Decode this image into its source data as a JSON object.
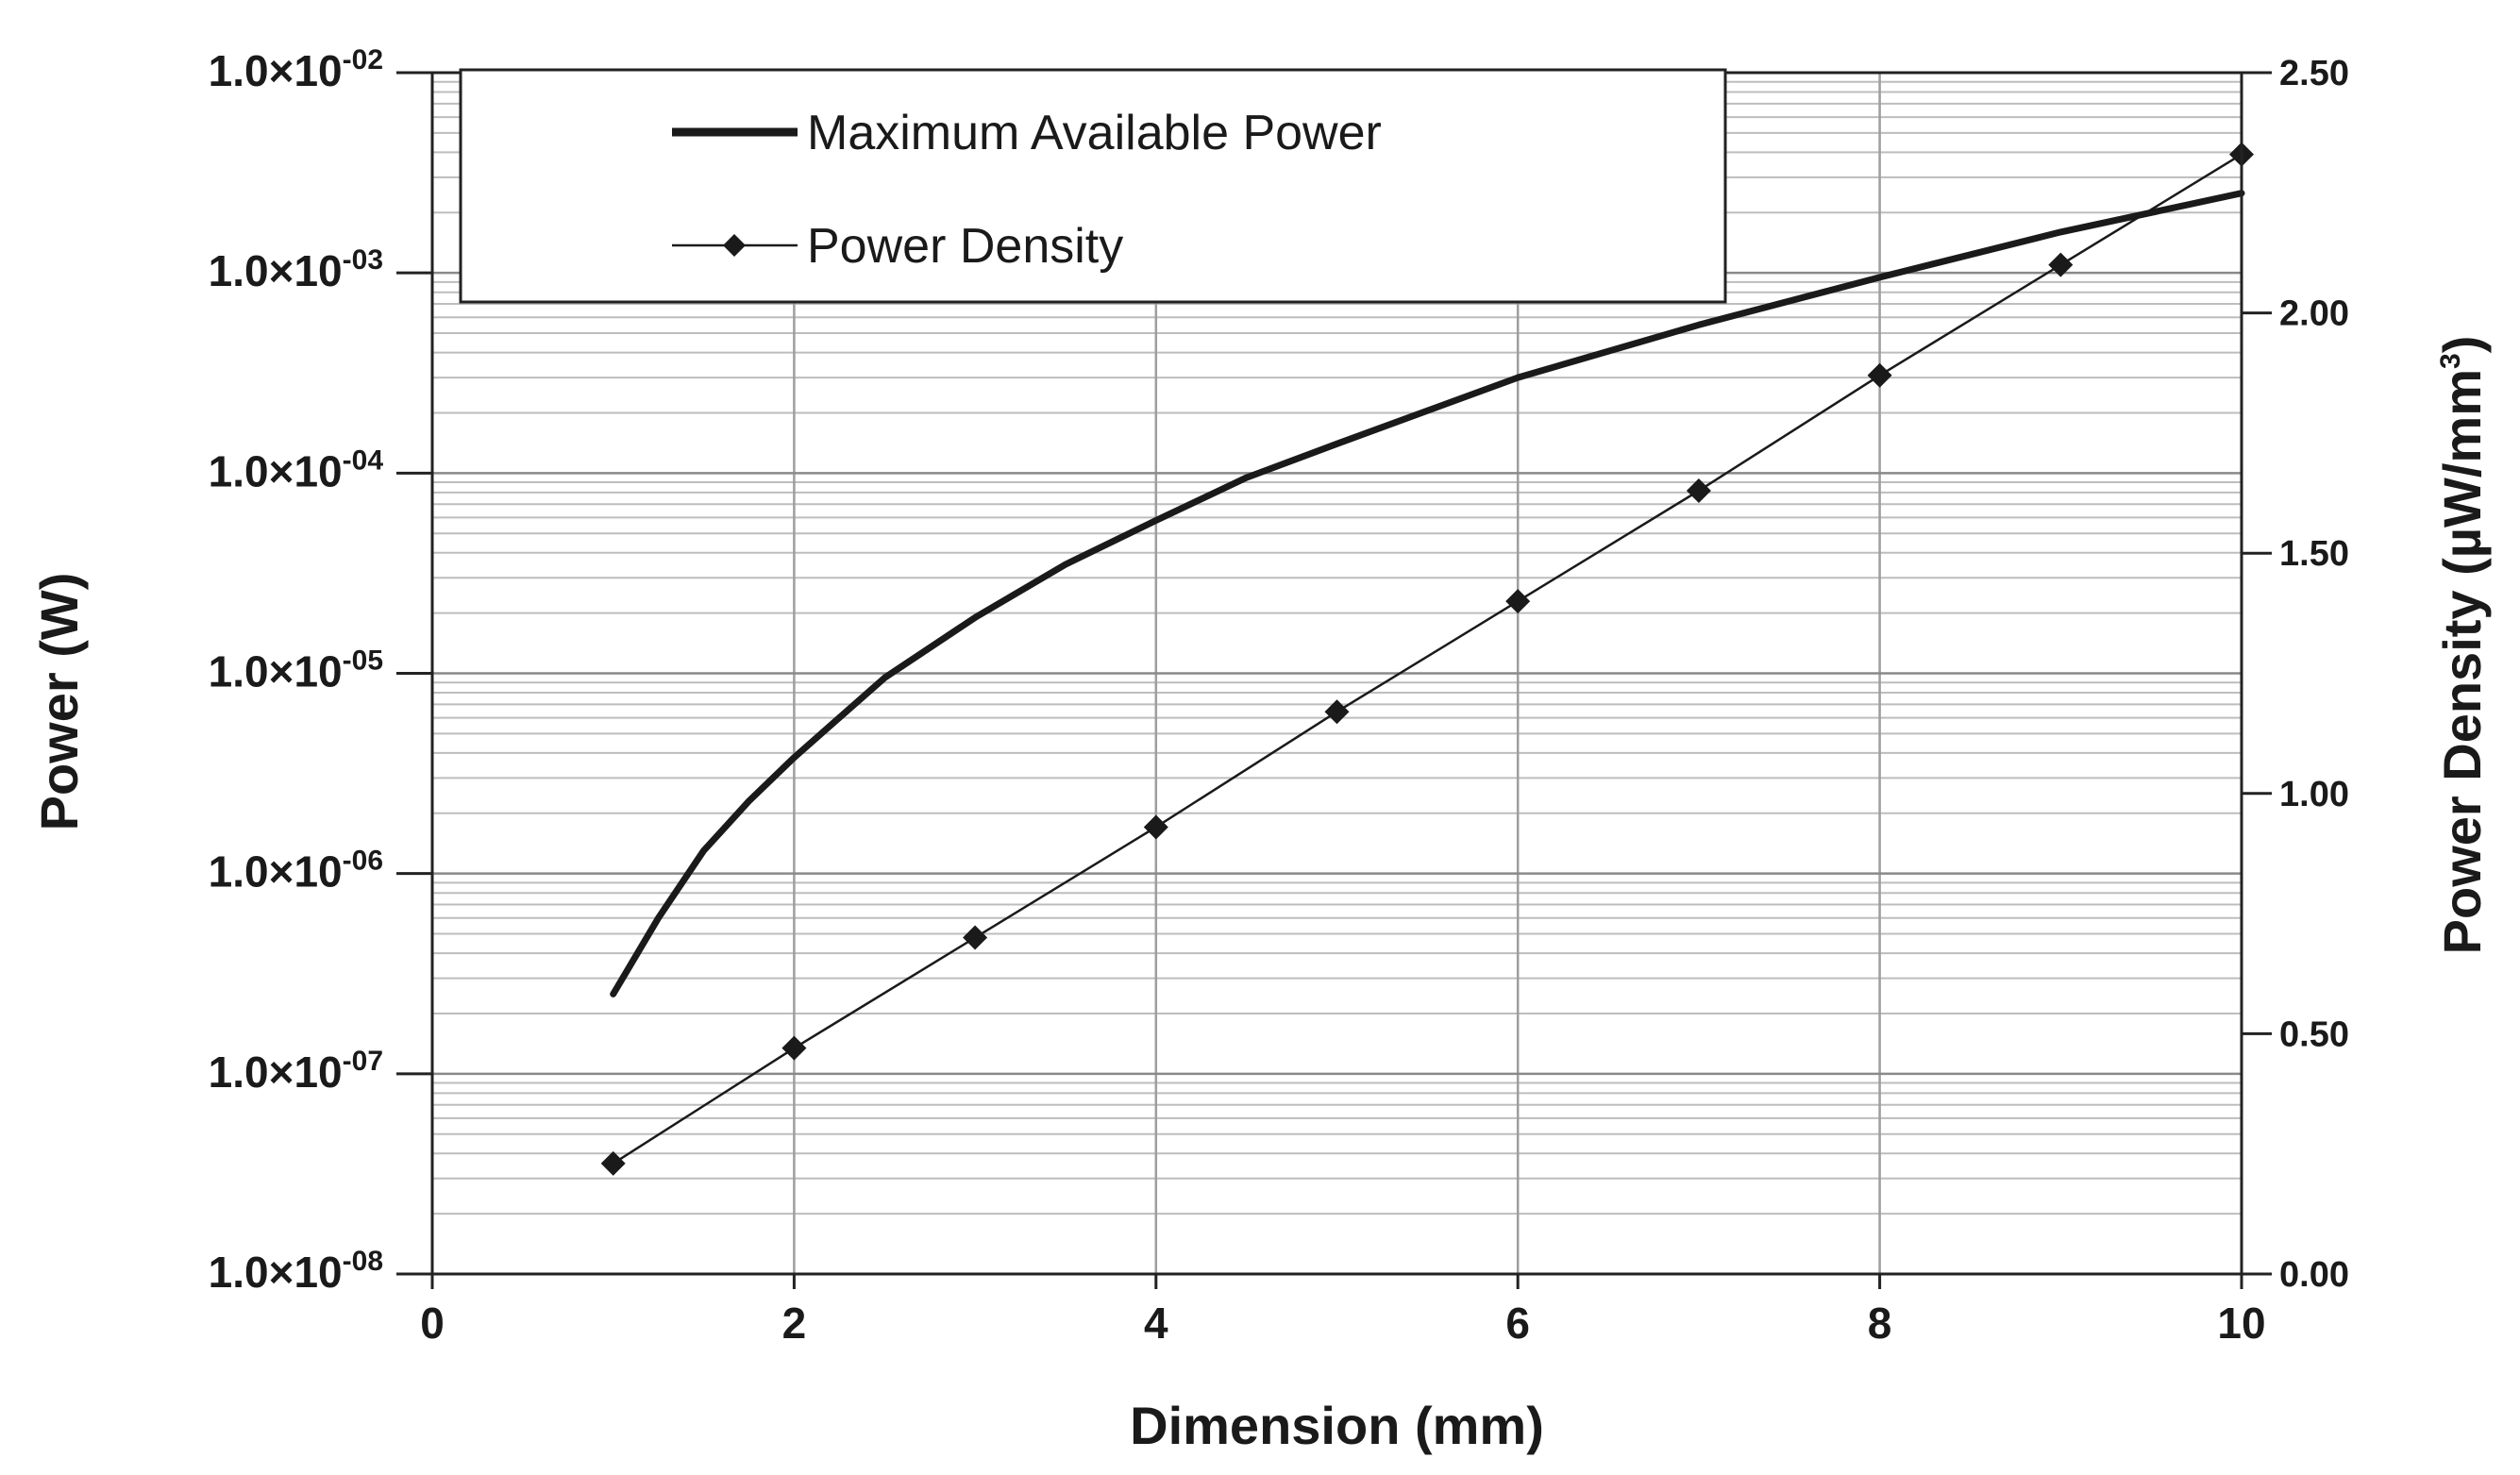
{
  "chart_data": {
    "type": "line",
    "title": "",
    "xlabel": "Dimension (mm)",
    "ylabel_left": "Power (W)",
    "ylabel_right_main": "Power Density (µW/mm",
    "ylabel_right_sup": "3",
    "ylabel_right_close": ")",
    "xlim": [
      0,
      10
    ],
    "x_ticks": [
      "0",
      "2",
      "4",
      "6",
      "8",
      "10"
    ],
    "y_left_scale": "log",
    "y_left_lim": [
      1e-08,
      0.01
    ],
    "y_left_tick_mantissa": "1.0×10",
    "y_left_tick_exponents": [
      "-08",
      "-07",
      "-06",
      "-05",
      "-04",
      "-03",
      "-02"
    ],
    "y_right_lim": [
      0,
      2.5
    ],
    "y_right_ticks": [
      "0.00",
      "0.50",
      "1.00",
      "1.50",
      "2.00",
      "2.50"
    ],
    "grid": true,
    "legend_position": "top-left",
    "series": [
      {
        "name": "Maximum Available Power",
        "axis": "left",
        "style": "thick-line",
        "x": [
          1.0,
          1.25,
          1.5,
          1.75,
          2.0,
          2.5,
          3.0,
          3.5,
          4.0,
          4.5,
          5.0,
          6.0,
          7.0,
          8.0,
          9.0,
          10.0
        ],
        "y": [
          2.5e-07,
          6e-07,
          1.3e-06,
          2.3e-06,
          3.8e-06,
          9.5e-06,
          1.9e-05,
          3.5e-05,
          5.8e-05,
          9.5e-05,
          0.00014,
          0.0003,
          0.00055,
          0.00095,
          0.0016,
          0.0025
        ]
      },
      {
        "name": "Power Density",
        "axis": "right",
        "style": "line-diamond",
        "x": [
          1,
          2,
          3,
          4,
          5,
          6,
          7,
          8,
          9,
          10
        ],
        "y": [
          0.23,
          0.47,
          0.7,
          0.93,
          1.17,
          1.4,
          1.63,
          1.87,
          2.1,
          2.33
        ]
      }
    ]
  }
}
